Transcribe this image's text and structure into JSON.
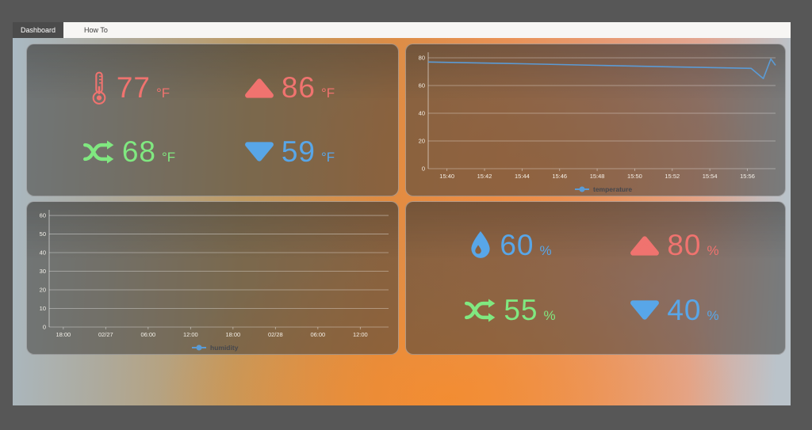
{
  "tabs": {
    "items": [
      {
        "label": "Dashboard",
        "selected": true
      },
      {
        "label": "How To",
        "selected": false
      }
    ]
  },
  "colors": {
    "red": "#f0736f",
    "green": "#80e880",
    "blue": "#58a6e8",
    "series_blue": "#5b9bd5",
    "frame": "#575757",
    "tabbar_bg": "#f7f6f4",
    "selected_tab_bg": "#4b4b4b"
  },
  "temperature_panel": {
    "items": [
      {
        "name": "current",
        "icon": "thermometer-icon",
        "value": "77",
        "unit": "°F",
        "color": "#f0736f"
      },
      {
        "name": "max",
        "icon": "triangle-up-icon",
        "value": "86",
        "unit": "°F",
        "color": "#f0736f"
      },
      {
        "name": "average",
        "icon": "shuffle-icon",
        "value": "68",
        "unit": "°F",
        "color": "#80e880"
      },
      {
        "name": "min",
        "icon": "triangle-down-icon",
        "value": "59",
        "unit": "°F",
        "color": "#58a6e8"
      }
    ]
  },
  "humidity_panel": {
    "items": [
      {
        "name": "current",
        "icon": "droplet-icon",
        "value": "60",
        "unit": "%",
        "color": "#58a6e8"
      },
      {
        "name": "max",
        "icon": "triangle-up-icon",
        "value": "80",
        "unit": "%",
        "color": "#f0736f"
      },
      {
        "name": "average",
        "icon": "shuffle-icon",
        "value": "55",
        "unit": "%",
        "color": "#80e880"
      },
      {
        "name": "min",
        "icon": "triangle-down-icon",
        "value": "40",
        "unit": "%",
        "color": "#58a6e8"
      }
    ]
  },
  "chart_data": [
    {
      "type": "line",
      "title": "temperature history",
      "legend": "temperature",
      "series_color": "#5b9bd5",
      "ylim": [
        0,
        84
      ],
      "y_ticks": [
        0,
        20,
        40,
        60,
        80
      ],
      "x_domain": [
        0,
        18.5
      ],
      "x_ticks": [
        1,
        3,
        5,
        7,
        9,
        11,
        13,
        15,
        17
      ],
      "x_tick_labels": [
        "15:40",
        "15:42",
        "15:44",
        "15:46",
        "15:48",
        "15:50",
        "15:52",
        "15:54",
        "15:56"
      ],
      "series": [
        {
          "name": "temperature",
          "points": [
            [
              0,
              77
            ],
            [
              5,
              75.7
            ],
            [
              9,
              74.6
            ],
            [
              13,
              73.5
            ],
            [
              17.2,
              72.4
            ],
            [
              17.85,
              65
            ],
            [
              18.25,
              79.2
            ],
            [
              18.5,
              74.6
            ]
          ]
        }
      ]
    },
    {
      "type": "line",
      "title": "humidity history",
      "legend": "humidity",
      "series_color": "#5b9bd5",
      "ylim": [
        0,
        63
      ],
      "y_ticks": [
        0,
        10,
        20,
        30,
        40,
        50,
        60
      ],
      "x_domain": [
        0,
        48
      ],
      "x_ticks": [
        2,
        8,
        14,
        20,
        26,
        32,
        38,
        44
      ],
      "x_tick_labels": [
        "18:00",
        "02/27",
        "06:00",
        "12:00",
        "18:00",
        "02/28",
        "06:00",
        "12:00"
      ],
      "series": [
        {
          "name": "humidity",
          "points": []
        }
      ]
    }
  ]
}
